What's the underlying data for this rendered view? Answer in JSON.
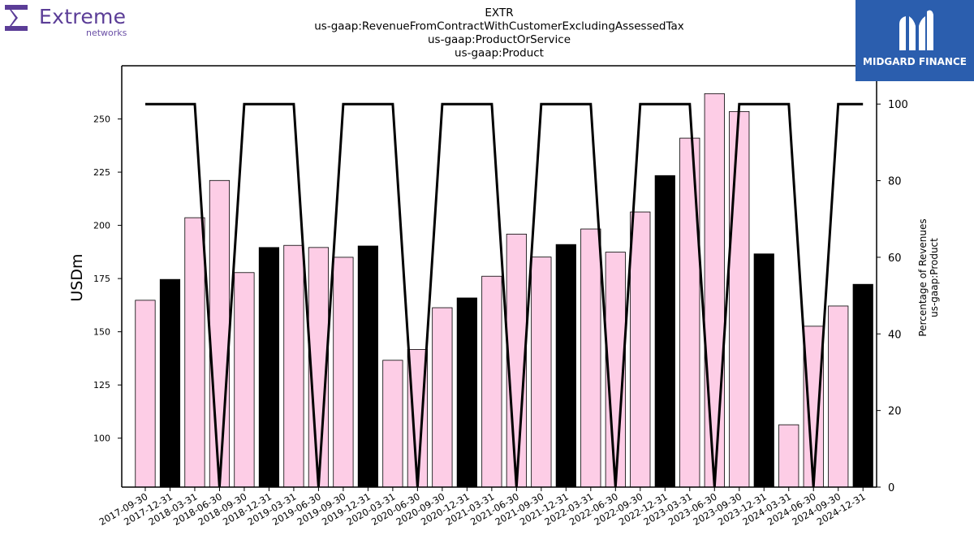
{
  "brand": {
    "left_name": "Extreme",
    "left_sub": "networks",
    "right_name": "MIDGARD FINANCE"
  },
  "colors": {
    "bar_pink": "#fdcde6",
    "bar_black": "#000000",
    "line": "#000000",
    "brand_purple": "#5b3d97",
    "brand_blue": "#2b5eae"
  },
  "chart_data": {
    "type": "bar",
    "title_lines": [
      "EXTR",
      "us-gaap:RevenueFromContractWithCustomerExcludingAssessedTax",
      "us-gaap:ProductOrService",
      "us-gaap:Product"
    ],
    "ylabel": "USDm",
    "y2label_lines": [
      "Percentage of Revenues",
      "us-gaap:Product"
    ],
    "ylim": [
      77,
      275
    ],
    "yticks": [
      100,
      125,
      150,
      175,
      200,
      225,
      250
    ],
    "y2lim": [
      0,
      110
    ],
    "y2ticks": [
      0,
      20,
      40,
      60,
      80,
      100
    ],
    "categories": [
      "2017-09-30",
      "2017-12-31",
      "2018-03-31",
      "2018-06-30",
      "2018-09-30",
      "2018-12-31",
      "2019-03-31",
      "2019-06-30",
      "2019-09-30",
      "2019-12-31",
      "2020-03-31",
      "2020-06-30",
      "2020-09-30",
      "2020-12-31",
      "2021-03-31",
      "2021-06-30",
      "2021-09-30",
      "2021-12-31",
      "2022-03-31",
      "2022-06-30",
      "2022-09-30",
      "2022-12-31",
      "2023-03-31",
      "2023-06-30",
      "2023-09-30",
      "2023-12-31",
      "2024-03-31",
      "2024-06-30",
      "2024-09-30",
      "2024-12-31"
    ],
    "values": [
      164.8,
      174.6,
      203.6,
      221.1,
      177.8,
      189.6,
      190.6,
      189.6,
      185.0,
      190.3,
      136.6,
      141.7,
      161.3,
      165.9,
      176.1,
      195.9,
      185.1,
      191.0,
      198.3,
      187.4,
      206.3,
      223.4,
      241.0,
      261.9,
      253.5,
      186.6,
      106.3,
      152.6,
      162.1,
      172.3
    ],
    "bar_highlight": [
      false,
      true,
      false,
      false,
      false,
      true,
      false,
      false,
      false,
      true,
      false,
      false,
      false,
      true,
      false,
      false,
      false,
      true,
      false,
      false,
      false,
      true,
      false,
      false,
      false,
      true,
      false,
      false,
      false,
      true
    ],
    "percent_series": [
      100,
      100,
      100,
      0,
      100,
      100,
      100,
      0,
      100,
      100,
      100,
      0,
      100,
      100,
      100,
      0,
      100,
      100,
      100,
      0,
      100,
      100,
      100,
      0,
      100,
      100,
      100,
      0,
      100,
      100
    ],
    "grid": false
  }
}
